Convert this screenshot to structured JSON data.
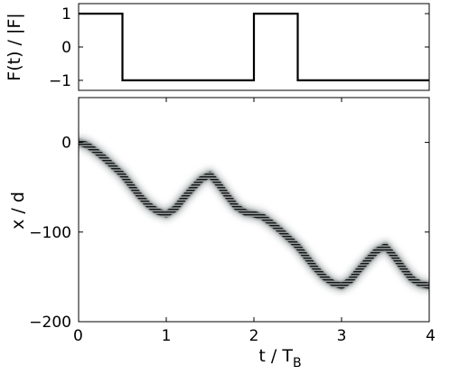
{
  "chart_data": [
    {
      "type": "line",
      "xlabel": "",
      "ylabel": "F(t) / |F|",
      "xlim": [
        0,
        4
      ],
      "ylim": [
        -1.3,
        1.3
      ],
      "yticks": [
        "1",
        "0",
        "−1"
      ],
      "series": [
        {
          "x": [
            0,
            0.5,
            0.5,
            2.0,
            2.0,
            2.5,
            2.5,
            4.0
          ],
          "y": [
            1,
            1,
            -1,
            -1,
            1,
            1,
            -1,
            -1
          ]
        }
      ]
    },
    {
      "type": "heatmap",
      "xlabel": "t / T",
      "xlabel_subscript": "B",
      "ylabel": "x / d",
      "xlim": [
        0,
        4
      ],
      "ylim": [
        -200,
        50
      ],
      "xticks": [
        "0",
        "1",
        "2",
        "3",
        "4"
      ],
      "yticks": [
        "0",
        "−100",
        "−200"
      ],
      "colormap": "white-to-black",
      "series": [
        {
          "x": [
            0,
            0.1,
            0.2,
            0.3,
            0.4,
            0.5,
            0.6,
            0.7,
            0.8,
            0.9,
            1.0,
            1.1,
            1.2,
            1.3,
            1.4,
            1.5,
            1.6,
            1.7,
            1.8,
            1.9,
            2.0,
            2.1,
            2.2,
            2.3,
            2.4,
            2.5,
            2.6,
            2.7,
            2.8,
            2.9,
            3.0,
            3.1,
            3.2,
            3.3,
            3.4,
            3.5,
            3.6,
            3.7,
            3.8,
            3.9,
            4.0
          ],
          "y": [
            0,
            -3,
            -10,
            -18,
            -27,
            -36,
            -48,
            -60,
            -70,
            -77,
            -80,
            -74,
            -62,
            -51,
            -41,
            -36,
            -47,
            -60,
            -72,
            -78,
            -80,
            -83,
            -90,
            -98,
            -107,
            -116,
            -128,
            -140,
            -150,
            -157,
            -160,
            -154,
            -142,
            -131,
            -121,
            -116,
            -127,
            -140,
            -152,
            -158,
            -160
          ]
        }
      ]
    }
  ]
}
